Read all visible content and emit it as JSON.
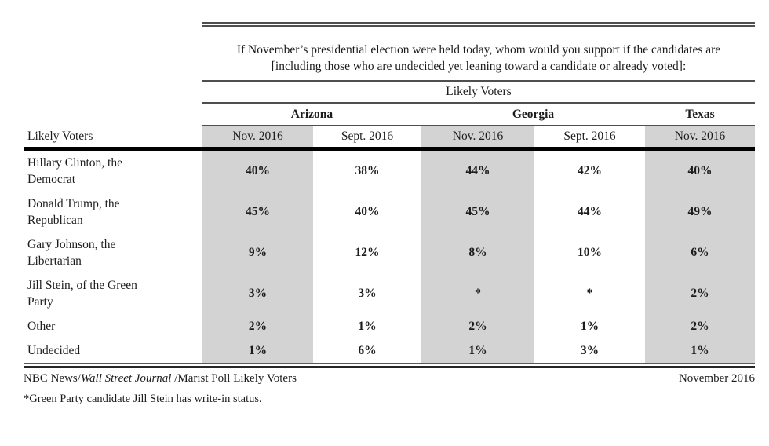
{
  "survey": {
    "question": "If November’s presidential election were held today, whom would you support if the candidates are [including those who are undecided yet leaning toward a candidate or already voted]:",
    "population_caption": "Likely Voters"
  },
  "table": {
    "row_header": "Likely Voters",
    "state_groups": [
      {
        "label": "Arizona"
      },
      {
        "label": "Georgia"
      },
      {
        "label": "Texas"
      }
    ],
    "columns": [
      "Nov. 2016",
      "Sept. 2016",
      "Nov. 2016",
      "Sept. 2016",
      "Nov. 2016"
    ],
    "shaded_column_indices": [
      0,
      2,
      4
    ],
    "shade_color": "#d3d3d3",
    "rows": [
      {
        "label": "Hillary Clinton, the Democrat",
        "values": [
          "40%",
          "38%",
          "44%",
          "42%",
          "40%"
        ]
      },
      {
        "label": "Donald Trump, the Republican",
        "values": [
          "45%",
          "40%",
          "45%",
          "44%",
          "49%"
        ]
      },
      {
        "label": "Gary Johnson, the Libertarian",
        "values": [
          "9%",
          "12%",
          "8%",
          "10%",
          "6%"
        ]
      },
      {
        "label": "Jill Stein, of the Green Party",
        "values": [
          "3%",
          "3%",
          "*",
          "*",
          "2%"
        ]
      },
      {
        "label": "Other",
        "values": [
          "2%",
          "1%",
          "2%",
          "1%",
          "2%"
        ]
      },
      {
        "label": "Undecided",
        "values": [
          "1%",
          "6%",
          "1%",
          "3%",
          "1%"
        ]
      }
    ]
  },
  "footer": {
    "source_prefix": "NBC News/",
    "source_italic": "Wall Street Journal",
    "source_suffix": " /Marist Poll Likely Voters",
    "date": "November 2016",
    "footnote": "*Green Party candidate Jill Stein has write-in status."
  },
  "chart_data": {
    "type": "table",
    "title": "If November’s presidential election were held today, whom would you support if the candidates are [including those who are undecided yet leaning toward a candidate or already voted]:",
    "population": "Likely Voters",
    "columns": [
      "Arizona Nov. 2016",
      "Arizona Sept. 2016",
      "Georgia Nov. 2016",
      "Georgia Sept. 2016",
      "Texas Nov. 2016"
    ],
    "rows": [
      {
        "candidate": "Hillary Clinton, the Democrat",
        "values": [
          "40%",
          "38%",
          "44%",
          "42%",
          "40%"
        ]
      },
      {
        "candidate": "Donald Trump, the Republican",
        "values": [
          "45%",
          "40%",
          "45%",
          "44%",
          "49%"
        ]
      },
      {
        "candidate": "Gary Johnson, the Libertarian",
        "values": [
          "9%",
          "12%",
          "8%",
          "10%",
          "6%"
        ]
      },
      {
        "candidate": "Jill Stein, of the Green Party",
        "values": [
          "3%",
          "3%",
          "*",
          "*",
          "2%"
        ]
      },
      {
        "candidate": "Other",
        "values": [
          "2%",
          "1%",
          "2%",
          "1%",
          "2%"
        ]
      },
      {
        "candidate": "Undecided",
        "values": [
          "1%",
          "6%",
          "1%",
          "3%",
          "1%"
        ]
      }
    ],
    "source": "NBC News/Wall Street Journal/Marist Poll Likely Voters",
    "date": "November 2016",
    "note": "*Green Party candidate Jill Stein has write-in status."
  }
}
